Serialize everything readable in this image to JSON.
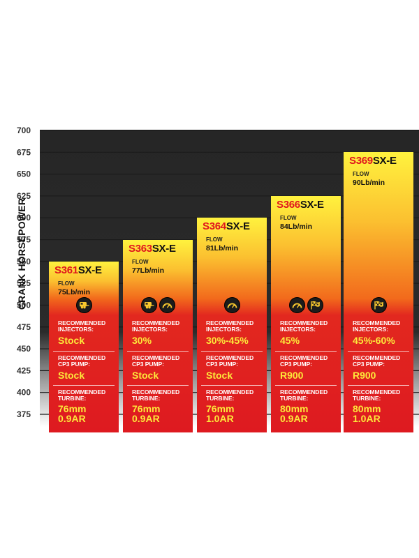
{
  "chart_data": {
    "type": "bar",
    "ylabel": "CRANK HORSEPOWER",
    "ylim": [
      375,
      700
    ],
    "yticks": [
      700,
      675,
      650,
      625,
      600,
      575,
      550,
      525,
      500,
      475,
      450,
      425,
      400,
      375
    ],
    "grid": true,
    "colors": {
      "plot_background": "#2a2a2a",
      "bar_top": "#ffef3c",
      "bar_mid": "#f26a1c",
      "bar_bottom": "#e0181f",
      "model_number": "#e0161d",
      "recommendation_value": "#fde83a"
    },
    "bars": [
      {
        "code": "S361",
        "suffix": "SX-E",
        "value": 550,
        "flow_label": "FLOW",
        "flow": "75Lb/min",
        "icons": [
          "towing-trailer-icon"
        ],
        "injectors_label": [
          "RECOMMENDED",
          "INJECTORS:"
        ],
        "injectors": "Stock",
        "pump_label": [
          "RECOMMENDED",
          "CP3 PUMP:"
        ],
        "pump": "Stock",
        "turbine_label": [
          "RECOMMENDED",
          "TURBINE:"
        ],
        "turbine": [
          "76mm",
          "0.9AR"
        ]
      },
      {
        "code": "S363",
        "suffix": "SX-E",
        "value": 575,
        "flow_label": "FLOW",
        "flow": "77Lb/min",
        "icons": [
          "towing-trailer-icon",
          "gauge-icon"
        ],
        "injectors_label": [
          "RECOMMENDED",
          "INJECTORS:"
        ],
        "injectors": "30%",
        "pump_label": [
          "RECOMMENDED",
          "CP3 PUMP:"
        ],
        "pump": "Stock",
        "turbine_label": [
          "RECOMMENDED",
          "TURBINE:"
        ],
        "turbine": [
          "76mm",
          "0.9AR"
        ]
      },
      {
        "code": "S364",
        "suffix": "SX-E",
        "value": 600,
        "flow_label": "FLOW",
        "flow": "81Lb/min",
        "icons": [
          "gauge-icon"
        ],
        "injectors_label": [
          "RECOMMENDED",
          "INJECTORS:"
        ],
        "injectors": "30%-45%",
        "pump_label": [
          "RECOMMENDED",
          "CP3 PUMP:"
        ],
        "pump": "Stock",
        "turbine_label": [
          "RECOMMENDED",
          "TURBINE:"
        ],
        "turbine": [
          "76mm",
          "1.0AR"
        ]
      },
      {
        "code": "S366",
        "suffix": "SX-E",
        "value": 625,
        "flow_label": "FLOW",
        "flow": "84Lb/min",
        "icons": [
          "gauge-icon",
          "checkered-flag-icon"
        ],
        "injectors_label": [
          "RECOMMENDED",
          "INJECTORS:"
        ],
        "injectors": "45%",
        "pump_label": [
          "RECOMMENDED",
          "CP3 PUMP:"
        ],
        "pump": "R900",
        "turbine_label": [
          "RECOMMENDED",
          "TURBINE:"
        ],
        "turbine": [
          "80mm",
          "0.9AR"
        ]
      },
      {
        "code": "S369",
        "suffix": "SX-E",
        "value": 675,
        "flow_label": "FLOW",
        "flow": "90Lb/min",
        "icons": [
          "checkered-flag-icon"
        ],
        "injectors_label": [
          "RECOMMENDED",
          "INJECTORS:"
        ],
        "injectors": "45%-60%",
        "pump_label": [
          "RECOMMENDED",
          "CP3 PUMP:"
        ],
        "pump": "R900",
        "turbine_label": [
          "RECOMMENDED",
          "TURBINE:"
        ],
        "turbine": [
          "80mm",
          "1.0AR"
        ]
      }
    ]
  }
}
